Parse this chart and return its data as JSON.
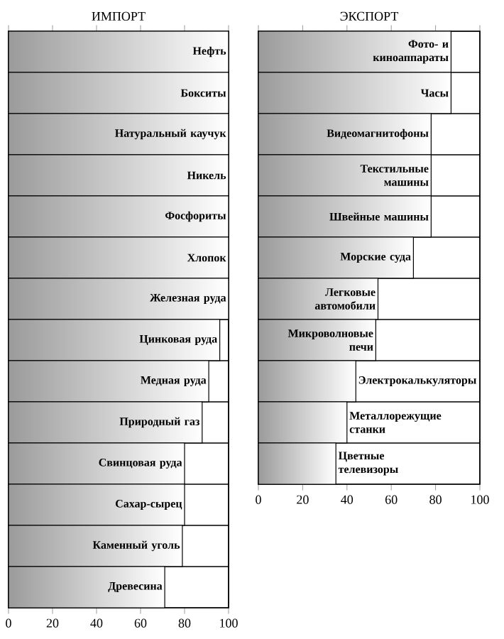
{
  "chart_data": [
    {
      "type": "bar",
      "orientation": "horizontal",
      "title": "ИМПОРТ",
      "categories": [
        "Нефть",
        "Бокситы",
        "Натуральный каучук",
        "Никель",
        "Фосфориты",
        "Хлопок",
        "Железная руда",
        "Цинковая руда",
        "Медная руда",
        "Природный газ",
        "Свинцовая руда",
        "Сахар-сырец",
        "Каменный уголь",
        "Древесина"
      ],
      "values": [
        100,
        100,
        100,
        100,
        100,
        100,
        100,
        96,
        91,
        88,
        80,
        80,
        79,
        71
      ],
      "color": "#9a9a9a",
      "xlim": [
        0,
        100
      ],
      "xticks": [
        0,
        20,
        40,
        60,
        80,
        100
      ]
    },
    {
      "type": "bar",
      "orientation": "horizontal",
      "title": "ЭКСПОРТ",
      "categories": [
        "Фото- и киноаппараты",
        "Часы",
        "Видеомагнитофоны",
        "Текстильные машины",
        "Швейные машины",
        "Морские суда",
        "Легковые автомобили",
        "Микроволновые печи",
        "Электрокалькуляторы",
        "Металлорежущие станки",
        "Цветные телевизоры"
      ],
      "values": [
        87,
        87,
        78,
        78,
        78,
        70,
        54,
        53,
        44,
        40,
        35
      ],
      "color": "#9a9a9a",
      "xlim": [
        0,
        100
      ],
      "xticks": [
        0,
        20,
        40,
        60,
        80,
        100
      ]
    }
  ]
}
